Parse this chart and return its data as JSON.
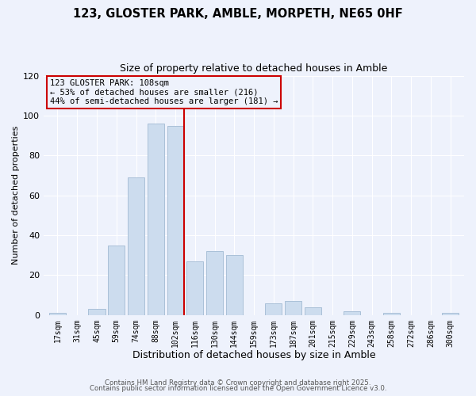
{
  "title": "123, GLOSTER PARK, AMBLE, MORPETH, NE65 0HF",
  "subtitle": "Size of property relative to detached houses in Amble",
  "xlabel": "Distribution of detached houses by size in Amble",
  "ylabel": "Number of detached properties",
  "bar_color": "#ccdcee",
  "bar_edgecolor": "#aac0d8",
  "categories": [
    "17sqm",
    "31sqm",
    "45sqm",
    "59sqm",
    "74sqm",
    "88sqm",
    "102sqm",
    "116sqm",
    "130sqm",
    "144sqm",
    "159sqm",
    "173sqm",
    "187sqm",
    "201sqm",
    "215sqm",
    "229sqm",
    "243sqm",
    "258sqm",
    "272sqm",
    "286sqm",
    "300sqm"
  ],
  "values": [
    1,
    0,
    3,
    35,
    69,
    96,
    95,
    27,
    32,
    30,
    0,
    6,
    7,
    4,
    0,
    2,
    0,
    1,
    0,
    0,
    1
  ],
  "ylim": [
    0,
    120
  ],
  "yticks": [
    0,
    20,
    40,
    60,
    80,
    100,
    120
  ],
  "marker_label": "123 GLOSTER PARK: 108sqm",
  "annotation_line1": "← 53% of detached houses are smaller (216)",
  "annotation_line2": "44% of semi-detached houses are larger (181) →",
  "footer1": "Contains HM Land Registry data © Crown copyright and database right 2025.",
  "footer2": "Contains public sector information licensed under the Open Government Licence v3.0.",
  "background_color": "#eef2fc",
  "grid_color": "#ffffff",
  "annotation_box_edgecolor": "#cc0000",
  "marker_line_color": "#cc0000",
  "red_line_index": 6.43
}
